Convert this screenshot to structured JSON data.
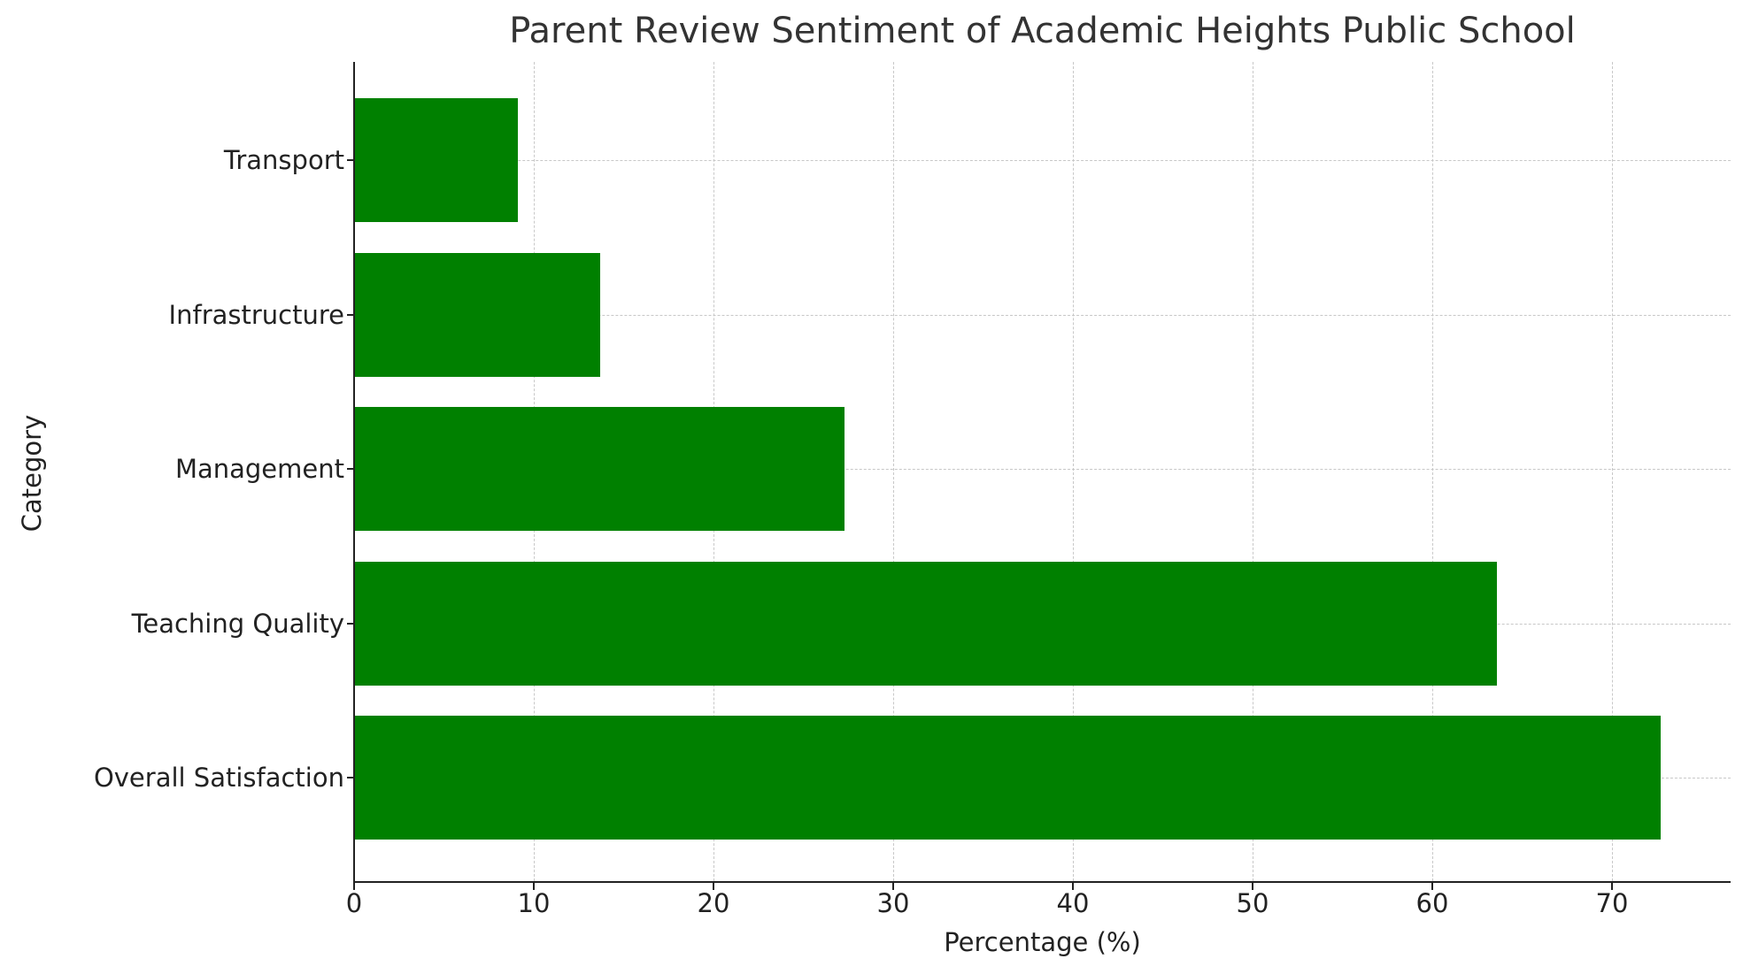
{
  "chart_data": {
    "type": "bar",
    "orientation": "horizontal",
    "title": "Parent Review Sentiment of Academic Heights Public School",
    "xlabel": "Percentage (%)",
    "ylabel": "Category",
    "categories": [
      "Overall Satisfaction",
      "Teaching Quality",
      "Management",
      "Infrastructure",
      "Transport"
    ],
    "values": [
      72.7,
      63.6,
      27.3,
      13.7,
      9.1
    ],
    "xlim": [
      0,
      76.3
    ],
    "xticks": [
      0,
      10,
      20,
      30,
      40,
      50,
      60,
      70
    ],
    "grid": true,
    "bar_color": "#008000",
    "legend": null
  }
}
